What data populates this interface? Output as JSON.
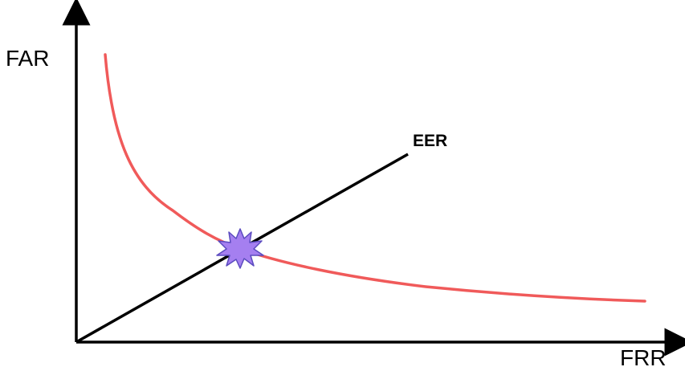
{
  "diagram": {
    "y_axis_label": "FAR",
    "x_axis_label": "FRR",
    "eer_label": "EER"
  },
  "colors": {
    "curve": "#f05a5a",
    "line": "#000000",
    "axes": "#000000",
    "marker_fill": "#a57ff0",
    "marker_stroke": "#5b4bbf"
  },
  "icons": {
    "eer_marker": "starburst-icon"
  }
}
